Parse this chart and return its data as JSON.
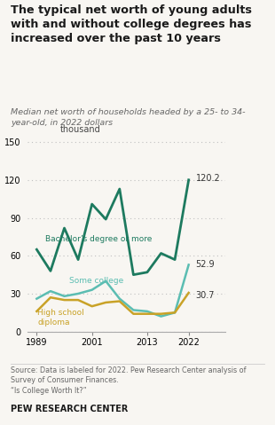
{
  "title": "The typical net worth of young adults\nwith and without college degrees has\nincreased over the past 10 years",
  "subtitle": "Median net worth of households headed by a 25- to 34-\nyear-old, in 2022 dollars",
  "ylabel_text": "thousand",
  "years": [
    1989,
    1992,
    1995,
    1998,
    2001,
    2004,
    2007,
    2010,
    2013,
    2016,
    2019,
    2022
  ],
  "bachelors": [
    65,
    48,
    82,
    57,
    101,
    89,
    113,
    45,
    47,
    62,
    57,
    120.2
  ],
  "some_college": [
    26,
    32,
    28,
    30,
    33,
    40,
    26,
    17,
    16,
    12,
    15,
    52.9
  ],
  "high_school": [
    16,
    27,
    25,
    25,
    20,
    23,
    24,
    14,
    14,
    14,
    15,
    30.7
  ],
  "bachelors_color": "#1d7a5f",
  "some_college_color": "#5bbdb2",
  "high_school_color": "#c9a227",
  "label_color": "#333333",
  "bg_color": "#f8f6f2",
  "grid_color": "#c0c0c0",
  "source_text": "Source: Data is labeled for 2022. Pew Research Center analysis of\nSurvey of Consumer Finances.\n“Is College Worth It?”",
  "pew_label": "PEW RESEARCH CENTER",
  "ylim": [
    0,
    155
  ],
  "yticks": [
    0,
    30,
    60,
    90,
    120,
    150
  ],
  "xticks": [
    1989,
    2001,
    2013,
    2022
  ],
  "bachelors_label": "Bachelor’s degree or more",
  "some_college_label": "Some college",
  "high_school_label": "High school\ndiploma"
}
